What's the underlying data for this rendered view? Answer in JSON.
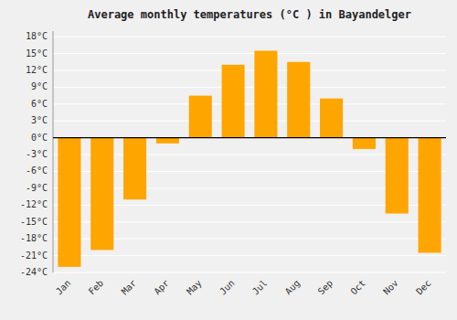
{
  "chart_data": {
    "type": "bar",
    "title": "Average monthly temperatures (°C ) in Bayandelger",
    "categories": [
      "Jan",
      "Feb",
      "Mar",
      "Apr",
      "May",
      "Jun",
      "Jul",
      "Aug",
      "Sep",
      "Oct",
      "Nov",
      "Dec"
    ],
    "values": [
      -23,
      -20,
      -11,
      -1,
      7.5,
      13,
      15.5,
      13.5,
      7,
      -2,
      -13.5,
      -20.5
    ],
    "color": "#FFA500",
    "ylim": [
      -24,
      19
    ],
    "yticks": [
      {
        "value": -24,
        "label": "-24°C"
      },
      {
        "value": -21,
        "label": "-21°C"
      },
      {
        "value": -18,
        "label": "-18°C"
      },
      {
        "value": -15,
        "label": "-15°C"
      },
      {
        "value": -12,
        "label": "-12°C"
      },
      {
        "value": -9,
        "label": "-9°C"
      },
      {
        "value": -6,
        "label": "-6°C"
      },
      {
        "value": -3,
        "label": "-3°C"
      },
      {
        "value": 0,
        "label": "0°C"
      },
      {
        "value": 3,
        "label": "3°C"
      },
      {
        "value": 6,
        "label": "6°C"
      },
      {
        "value": 9,
        "label": "9°C"
      },
      {
        "value": 12,
        "label": "12°C"
      },
      {
        "value": 15,
        "label": "15°C"
      },
      {
        "value": 18,
        "label": "18°C"
      }
    ],
    "grid": true
  }
}
